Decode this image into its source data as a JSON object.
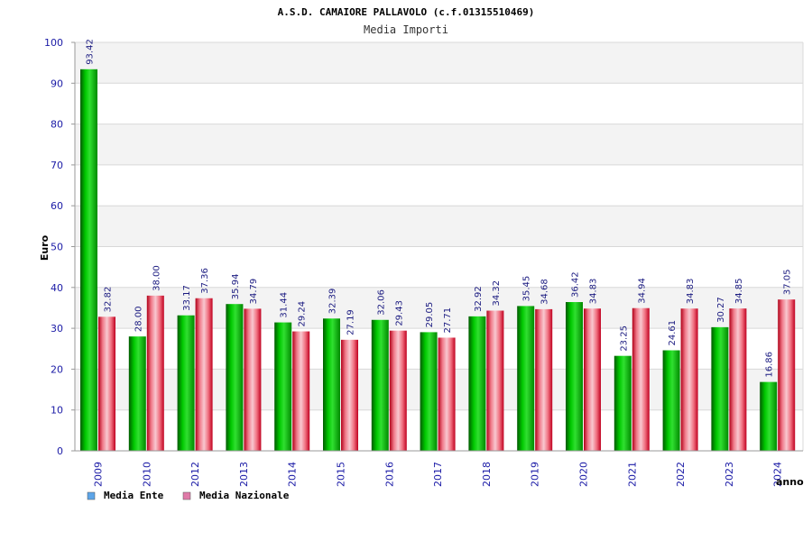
{
  "chart_data": {
    "type": "bar",
    "title": "A.S.D. CAMAIORE PALLAVOLO (c.f.01315510469)",
    "subtitle": "Media Importi",
    "xlabel": "anno",
    "ylabel": "Euro",
    "ylim": [
      0,
      100
    ],
    "yticks": [
      "0",
      "10",
      "20",
      "30",
      "40",
      "50",
      "60",
      "70",
      "80",
      "90",
      "100"
    ],
    "grid": true,
    "legend_position": "bottom-left",
    "categories": [
      "2009",
      "2010",
      "2012",
      "2013",
      "2014",
      "2015",
      "2016",
      "2017",
      "2018",
      "2019",
      "2020",
      "2021",
      "2022",
      "2023",
      "2024"
    ],
    "series": [
      {
        "name": "Media Ente",
        "color": "#00b000",
        "legend_color": "#5da5e8",
        "values": [
          93.42,
          28.0,
          33.17,
          35.94,
          31.44,
          32.39,
          32.06,
          29.05,
          32.92,
          35.45,
          36.42,
          23.25,
          24.61,
          30.27,
          16.86
        ],
        "labels": [
          "93.42",
          "28.00",
          "33.17",
          "35.94",
          "31.44",
          "32.39",
          "32.06",
          "29.05",
          "32.92",
          "35.45",
          "36.42",
          "23.25",
          "24.61",
          "30.27",
          "16.86"
        ]
      },
      {
        "name": "Media Nazionale",
        "color": "#e0203a",
        "legend_color": "#e07aa8",
        "values": [
          32.82,
          38.0,
          37.36,
          34.79,
          29.24,
          27.19,
          29.43,
          27.71,
          34.32,
          34.68,
          34.83,
          34.94,
          34.83,
          34.85,
          37.05
        ],
        "labels": [
          "32.82",
          "38.00",
          "37.36",
          "34.79",
          "29.24",
          "27.19",
          "29.43",
          "27.71",
          "34.32",
          "34.68",
          "34.83",
          "34.94",
          "34.83",
          "34.85",
          "37.05"
        ]
      }
    ]
  }
}
